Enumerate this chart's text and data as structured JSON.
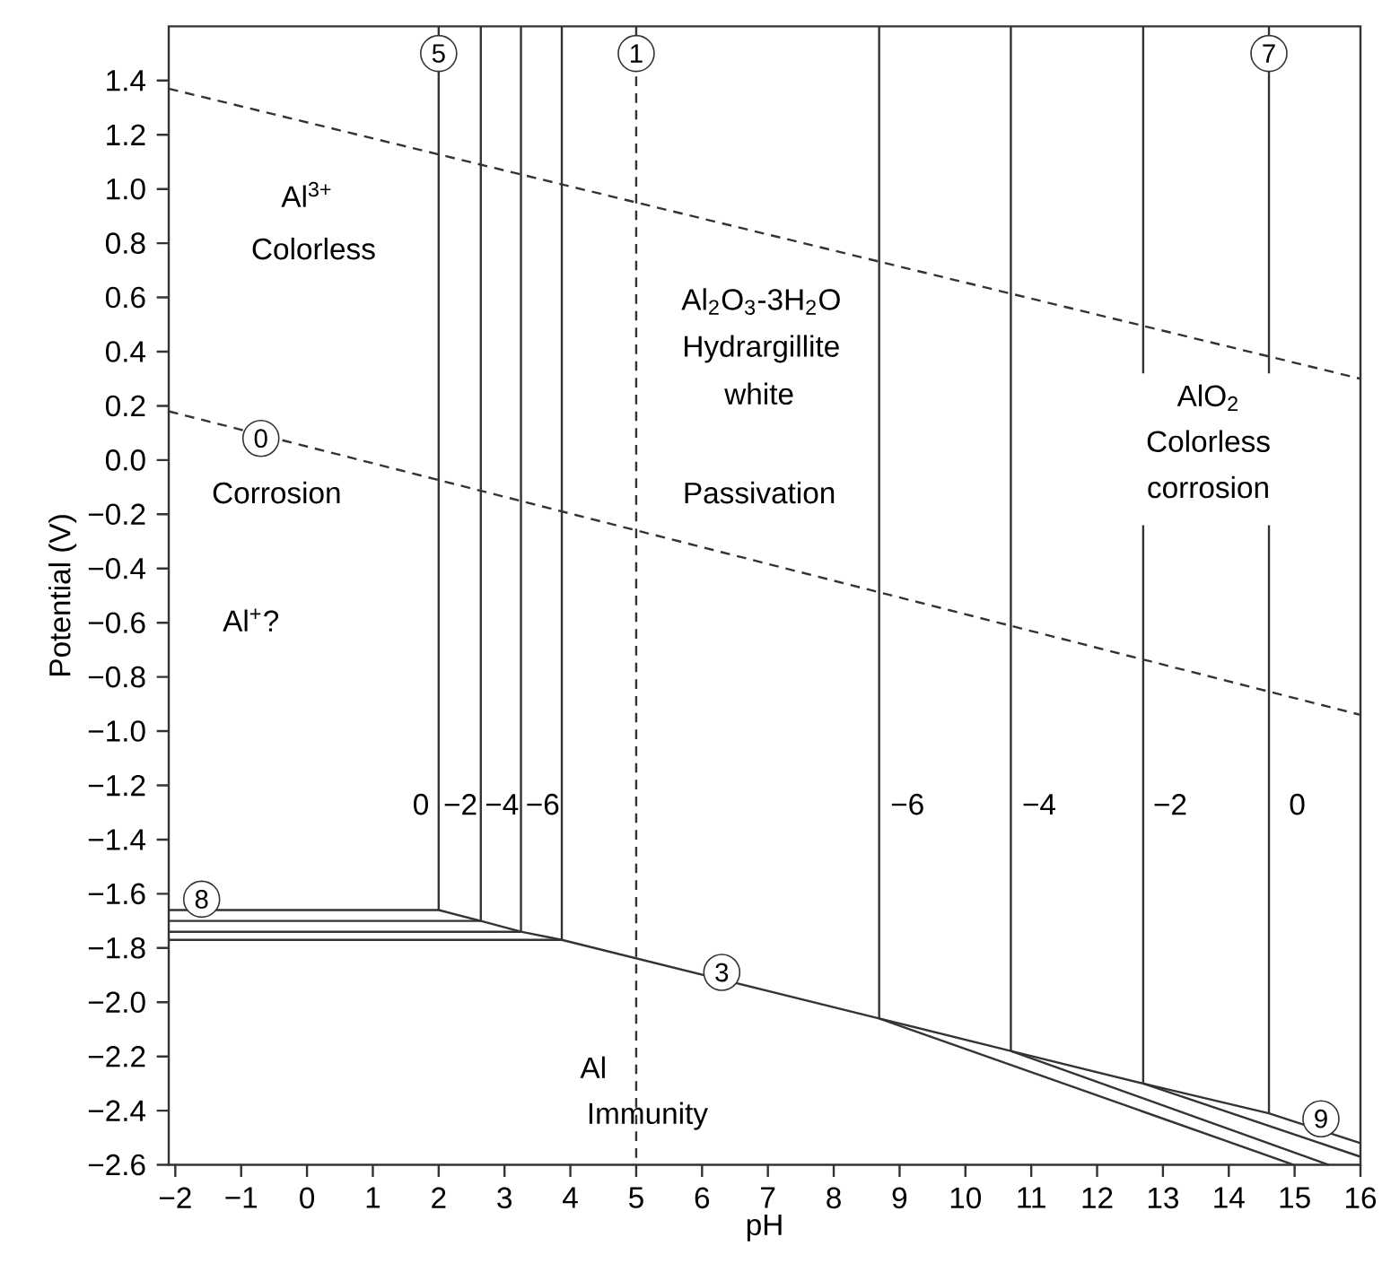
{
  "chart_data": {
    "type": "line",
    "xlabel": "pH",
    "ylabel": "Potential (V)",
    "xlim": [
      -2.1,
      16
    ],
    "ylim": [
      -2.6,
      1.6
    ],
    "xticks": [
      {
        "value": -2,
        "label": "−2"
      },
      {
        "value": -1,
        "label": "−1"
      },
      0,
      1,
      2,
      3,
      4,
      5,
      6,
      7,
      8,
      9,
      10,
      11,
      12,
      13,
      14,
      15,
      16
    ],
    "yticks": [
      {
        "value": -2.6,
        "label": "−2.6"
      },
      {
        "value": -2.4,
        "label": "−2.4"
      },
      {
        "value": -2.2,
        "label": "−2.2"
      },
      {
        "value": -2.0,
        "label": "−2.0"
      },
      {
        "value": -1.8,
        "label": "−1.8"
      },
      {
        "value": -1.6,
        "label": "−1.6"
      },
      {
        "value": -1.4,
        "label": "−1.4"
      },
      {
        "value": -1.2,
        "label": "−1.2"
      },
      {
        "value": -1.0,
        "label": "−1.0"
      },
      {
        "value": -0.8,
        "label": "−0.8"
      },
      {
        "value": -0.6,
        "label": "−0.6"
      },
      {
        "value": -0.4,
        "label": "−0.4"
      },
      {
        "value": -0.2,
        "label": "−0.2"
      },
      {
        "value": 0,
        "label": "0.0"
      },
      0.2,
      0.4,
      0.6,
      0.8,
      {
        "value": 1.0,
        "label": "1.0"
      },
      1.2,
      1.4
    ],
    "grid": false,
    "marker": "none",
    "series": [
      {
        "color": "#333333",
        "line_style": "dashed",
        "x": [
          -2.1,
          16
        ],
        "values": [
          1.37,
          0.3
        ]
      },
      {
        "color": "#333333",
        "line_style": "dashed",
        "x": [
          -2.1,
          16
        ],
        "values": [
          0.18,
          -0.94
        ]
      },
      {
        "color": "#333333",
        "line_style": "dashed",
        "x": [
          5,
          5
        ],
        "values": [
          1.6,
          -2.6
        ]
      },
      {
        "color": "#333333",
        "line_style": "solid",
        "x": [
          2.0,
          2.0
        ],
        "values": [
          1.6,
          -1.66
        ]
      },
      {
        "color": "#333333",
        "line_style": "solid",
        "x": [
          2.64,
          2.64
        ],
        "values": [
          1.6,
          -1.7
        ]
      },
      {
        "color": "#333333",
        "line_style": "solid",
        "x": [
          3.25,
          3.25
        ],
        "values": [
          1.6,
          -1.74
        ]
      },
      {
        "color": "#333333",
        "line_style": "solid",
        "x": [
          3.87,
          3.87
        ],
        "values": [
          1.6,
          -1.77
        ]
      },
      {
        "color": "#333333",
        "line_style": "solid",
        "x": [
          -2.1,
          2.64
        ],
        "values": [
          -1.7,
          -1.7
        ]
      },
      {
        "color": "#333333",
        "line_style": "solid",
        "x": [
          -2.1,
          3.25
        ],
        "values": [
          -1.74,
          -1.74
        ]
      },
      {
        "color": "#333333",
        "line_style": "solid",
        "x": [
          -2.1,
          3.87
        ],
        "values": [
          -1.77,
          -1.77
        ]
      },
      {
        "color": "#333333",
        "line_style": "solid",
        "x": [
          -2.1,
          2.0,
          2.64,
          3.25,
          3.87,
          8.69,
          10.69,
          12.7,
          14.61,
          16
        ],
        "values": [
          -1.66,
          -1.66,
          -1.7,
          -1.74,
          -1.77,
          -2.06,
          -2.18,
          -2.3,
          -2.41,
          -2.52
        ]
      },
      {
        "color": "#333333",
        "line_style": "solid",
        "x": [
          12.7,
          16
        ],
        "values": [
          -2.3,
          -2.57
        ]
      },
      {
        "color": "#333333",
        "line_style": "solid",
        "x": [
          10.69,
          15.52
        ],
        "values": [
          -2.18,
          -2.6
        ]
      },
      {
        "color": "#333333",
        "line_style": "solid",
        "x": [
          8.69,
          14.99
        ],
        "values": [
          -2.06,
          -2.6
        ]
      },
      {
        "color": "#333333",
        "line_style": "solid",
        "x": [
          8.69,
          8.69
        ],
        "values": [
          1.6,
          -2.06
        ]
      },
      {
        "color": "#333333",
        "line_style": "solid",
        "x": [
          10.69,
          10.69
        ],
        "values": [
          1.6,
          -2.18
        ]
      },
      {
        "color": "#333333",
        "line_style": "solid",
        "x": [
          12.7,
          12.7
        ],
        "values": [
          1.6,
          0.32
        ]
      },
      {
        "color": "#333333",
        "line_style": "solid",
        "x": [
          12.7,
          12.7
        ],
        "values": [
          -0.24,
          -2.3
        ]
      },
      {
        "color": "#333333",
        "line_style": "solid",
        "x": [
          14.61,
          14.61
        ],
        "values": [
          1.6,
          0.32
        ]
      },
      {
        "color": "#333333",
        "line_style": "solid",
        "x": [
          14.61,
          14.61
        ],
        "values": [
          -0.24,
          -2.41
        ]
      }
    ],
    "annotations": [
      {
        "text": "5",
        "x": 2.0,
        "y": 1.5
      },
      {
        "text": "1",
        "x": 5.0,
        "y": 1.5
      },
      {
        "text": "7",
        "x": 14.61,
        "y": 1.5
      },
      {
        "text": "0",
        "x": -0.7,
        "y": 0.08
      },
      {
        "text": "8",
        "x": -1.6,
        "y": -1.62
      },
      {
        "text": "3",
        "x": 6.3,
        "y": -1.89
      },
      {
        "text": "9",
        "x": 15.4,
        "y": -2.43
      },
      "Al$^{3+}$",
      "Colorless",
      "Corrosion",
      "Al$^{+}$?",
      "Al$_{2}$O$_{3}$-3H$_{2}$O",
      "Hydrargillite",
      "white",
      "Passivation",
      "AlO$_{2}$",
      "Colorless",
      "corrosion",
      "Al",
      "Immunity",
      "0",
      "−2",
      "−4",
      "−6",
      "−6",
      "−4",
      "−2",
      "0"
    ]
  }
}
